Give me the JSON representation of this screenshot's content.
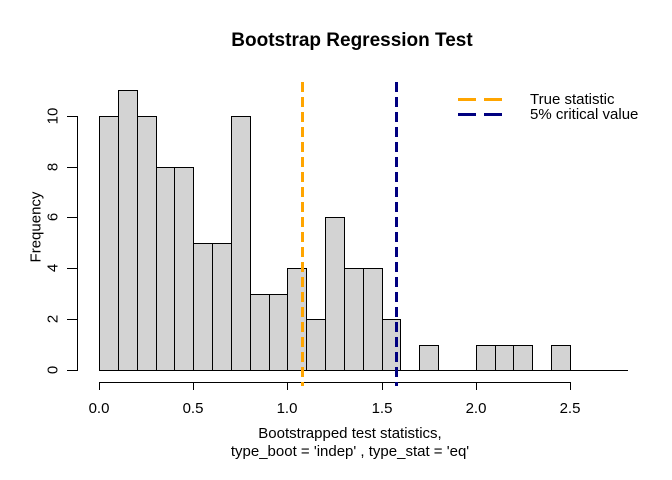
{
  "figure": {
    "title": "Bootstrap Regression Test",
    "ylabel": "Frequency",
    "xlabel_line1": "Bootstrapped test statistics,",
    "xlabel_line2": "type_boot = 'indep' , type_stat = 'eq'",
    "background_color": "#ffffff"
  },
  "legend": {
    "entries": [
      {
        "label": "True statistic",
        "color": "#FFA500",
        "line_style": "dashed"
      },
      {
        "label": "5% critical value",
        "color": "#000080",
        "line_style": "dashed"
      }
    ],
    "position": "top-right",
    "border": "none"
  },
  "chart_data": {
    "type": "bar",
    "subtype": "histogram",
    "title": "Bootstrap Regression Test",
    "xlabel": "Bootstrapped test statistics, type_boot = 'indep' , type_stat = 'eq'",
    "ylabel": "Frequency",
    "bin_start": 0.0,
    "bin_width": 0.1,
    "counts": [
      10,
      11,
      10,
      8,
      8,
      5,
      5,
      10,
      3,
      3,
      4,
      2,
      6,
      4,
      4,
      2,
      0,
      1,
      0,
      0,
      1,
      1,
      1,
      0,
      1,
      0,
      0,
      0
    ],
    "total_observations": 100,
    "x_tick_labels": [
      "0.0",
      "0.5",
      "1.0",
      "1.5",
      "2.0",
      "2.5"
    ],
    "x_tick_values": [
      0.0,
      0.5,
      1.0,
      1.5,
      2.0,
      2.5
    ],
    "y_tick_labels": [
      "0",
      "2",
      "4",
      "6",
      "8",
      "10"
    ],
    "y_tick_values": [
      0,
      2,
      4,
      6,
      8,
      10
    ],
    "xlim": [
      0.0,
      2.8
    ],
    "ylim": [
      0,
      11
    ],
    "grid": false,
    "bar_fill": "#d3d3d3",
    "bar_border": "#000000",
    "vlines": [
      {
        "value": 1.08,
        "color": "#FFA500",
        "label": "True statistic",
        "style": "dashed"
      },
      {
        "value": 1.58,
        "color": "#000080",
        "label": "5% critical value",
        "style": "dashed"
      }
    ],
    "legend_position": "top-right"
  }
}
